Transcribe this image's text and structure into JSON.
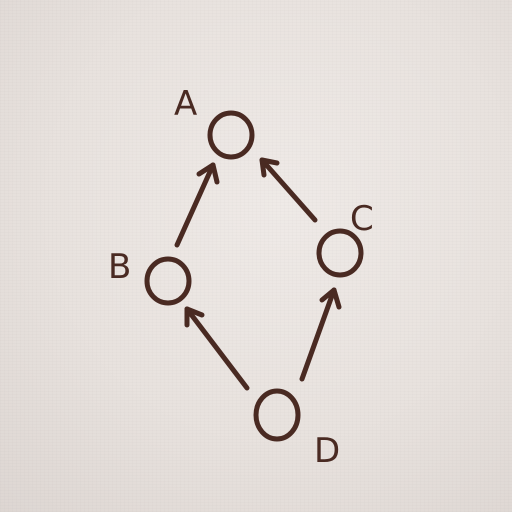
{
  "diagram": {
    "ink_color": "#4a2a22",
    "paper_color": "#e9e3df",
    "nodes": [
      {
        "id": "A",
        "label": "A"
      },
      {
        "id": "B",
        "label": "B"
      },
      {
        "id": "C",
        "label": "C"
      },
      {
        "id": "D",
        "label": "D"
      }
    ],
    "edges": [
      {
        "from": "B",
        "to": "A"
      },
      {
        "from": "C",
        "to": "A"
      },
      {
        "from": "D",
        "to": "B"
      },
      {
        "from": "D",
        "to": "C"
      }
    ]
  }
}
